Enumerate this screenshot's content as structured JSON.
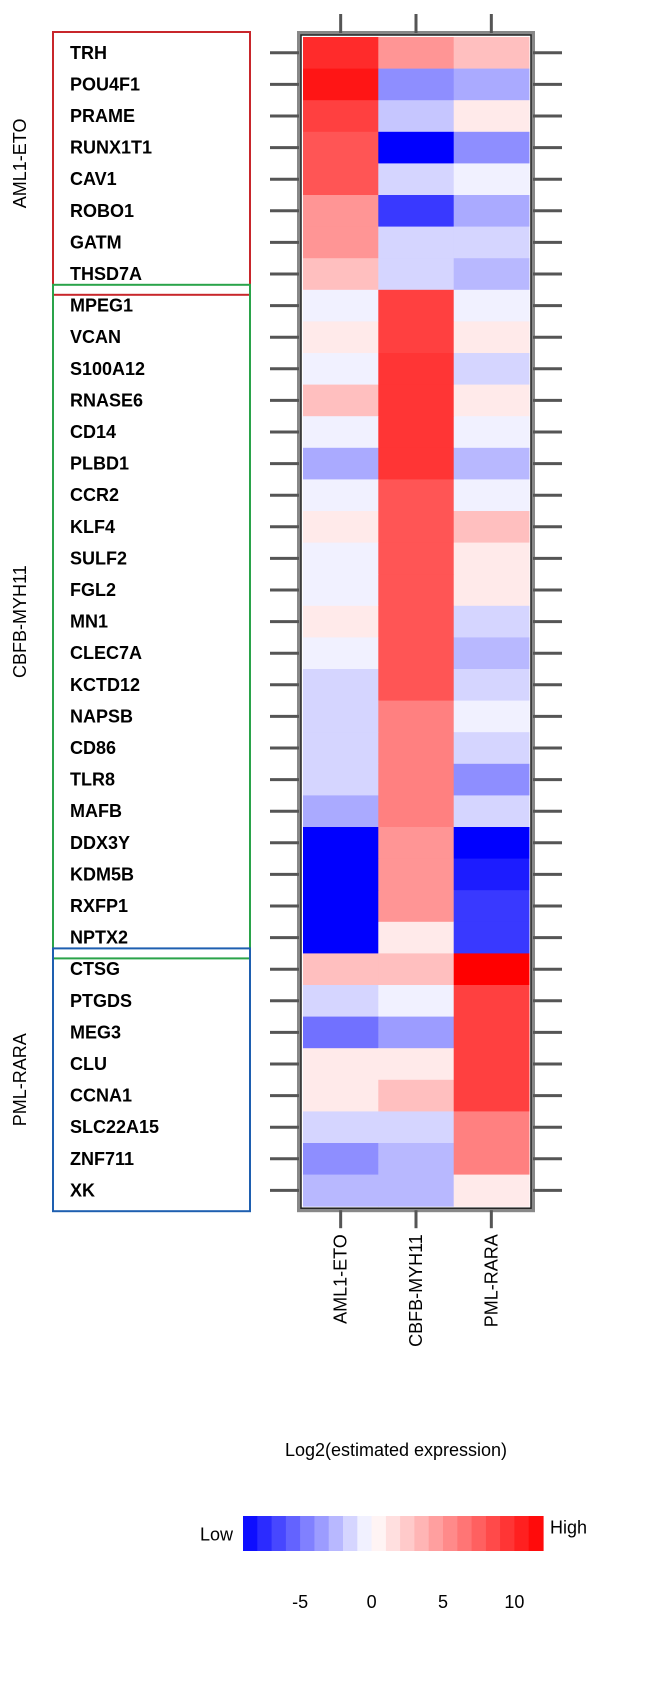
{
  "chart_data": {
    "type": "heatmap",
    "columns": [
      "AML1-ETO",
      "CBFB-MYH11",
      "PML-RARA"
    ],
    "groups": [
      {
        "name": "AML1-ETO",
        "color": "#c8262b",
        "start": 0,
        "end": 7
      },
      {
        "name": "CBFB-MYH11",
        "color": "#2aa34a",
        "start": 8,
        "end": 28
      },
      {
        "name": "PML-RARA",
        "color": "#1e5fb0",
        "start": 29,
        "end": 36
      }
    ],
    "rows": [
      {
        "gene": "TRH",
        "values": [
          10,
          5,
          3
        ]
      },
      {
        "gene": "POU4F1",
        "values": [
          11,
          -4,
          -3
        ]
      },
      {
        "gene": "PRAME",
        "values": [
          9,
          -2,
          1
        ]
      },
      {
        "gene": "RUNX1T1",
        "values": [
          8,
          -9,
          -4
        ]
      },
      {
        "gene": "CAV1",
        "values": [
          8,
          -1.5,
          -0.5
        ]
      },
      {
        "gene": "ROBO1",
        "values": [
          5,
          -7,
          -3
        ]
      },
      {
        "gene": "GATM",
        "values": [
          5,
          -1.5,
          -1.5
        ]
      },
      {
        "gene": "THSD7A",
        "values": [
          3,
          -1.5,
          -2.5
        ]
      },
      {
        "gene": "MPEG1",
        "values": [
          -0.5,
          9,
          -0.5
        ]
      },
      {
        "gene": "VCAN",
        "values": [
          1,
          9,
          1
        ]
      },
      {
        "gene": "S100A12",
        "values": [
          -0.5,
          9.5,
          -1.5
        ]
      },
      {
        "gene": "RNASE6",
        "values": [
          3,
          9.5,
          1
        ]
      },
      {
        "gene": "CD14",
        "values": [
          -0.5,
          9.5,
          -0.5
        ]
      },
      {
        "gene": "PLBD1",
        "values": [
          -3,
          9.5,
          -2.5
        ]
      },
      {
        "gene": "CCR2",
        "values": [
          -0.5,
          8,
          -0.5
        ]
      },
      {
        "gene": "KLF4",
        "values": [
          1,
          8,
          3
        ]
      },
      {
        "gene": "SULF2",
        "values": [
          -0.5,
          8,
          1
        ]
      },
      {
        "gene": "FGL2",
        "values": [
          -0.5,
          8,
          1
        ]
      },
      {
        "gene": "MN1",
        "values": [
          1,
          8,
          -1.5
        ]
      },
      {
        "gene": "CLEC7A",
        "values": [
          -0.5,
          8,
          -2.5
        ]
      },
      {
        "gene": "KCTD12",
        "values": [
          -1.5,
          8,
          -1.5
        ]
      },
      {
        "gene": "NAPSB",
        "values": [
          -1.5,
          6,
          -0.5
        ]
      },
      {
        "gene": "CD86",
        "values": [
          -1.5,
          6,
          -1.5
        ]
      },
      {
        "gene": "TLR8",
        "values": [
          -1.5,
          6,
          -4
        ]
      },
      {
        "gene": "MAFB",
        "values": [
          -3,
          6,
          -1.5
        ]
      },
      {
        "gene": "DDX3Y",
        "values": [
          -9,
          5,
          -9
        ]
      },
      {
        "gene": "KDM5B",
        "values": [
          -9,
          5,
          -8
        ]
      },
      {
        "gene": "RXFP1",
        "values": [
          -9,
          5,
          -7
        ]
      },
      {
        "gene": "NPTX2",
        "values": [
          -9,
          1,
          -7
        ]
      },
      {
        "gene": "CTSG",
        "values": [
          3,
          3,
          12
        ]
      },
      {
        "gene": "PTGDS",
        "values": [
          -1.5,
          -0.5,
          9
        ]
      },
      {
        "gene": "MEG3",
        "values": [
          -5,
          -3.5,
          9
        ]
      },
      {
        "gene": "CLU",
        "values": [
          1,
          1,
          9
        ]
      },
      {
        "gene": "CCNA1",
        "values": [
          1,
          3,
          9
        ]
      },
      {
        "gene": "SLC22A15",
        "values": [
          -1.5,
          -1.5,
          6
        ]
      },
      {
        "gene": "ZNF711",
        "values": [
          -4,
          -2.5,
          6
        ]
      },
      {
        "gene": "XK",
        "values": [
          -2.5,
          -2.5,
          1
        ]
      }
    ],
    "legend": {
      "title": "Log2(estimated expression)",
      "low_label": "Low",
      "high_label": "High",
      "range": [
        -9,
        12
      ],
      "ticks": [
        -5,
        0,
        5,
        10
      ],
      "tick_labels": [
        "-5",
        "0",
        "5",
        "10"
      ],
      "low_color": "#0000ff",
      "mid_color": "#ffffff",
      "high_color": "#ff0000"
    }
  }
}
